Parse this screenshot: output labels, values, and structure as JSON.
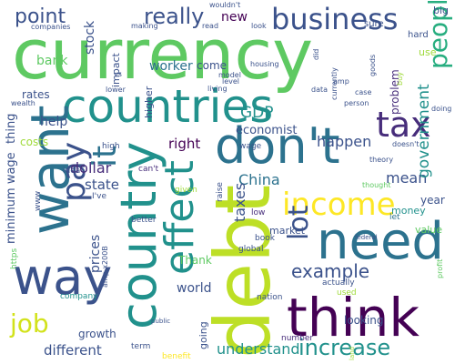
{
  "words": [
    {
      "text": "currency",
      "color": "#5ec962"
    },
    {
      "text": "debt",
      "color": "#bddf26"
    },
    {
      "text": "countries",
      "color": "#21918c"
    },
    {
      "text": "think",
      "color": "#440154"
    },
    {
      "text": "don't",
      "color": "#2c728e"
    },
    {
      "text": "need",
      "color": "#2c728e"
    },
    {
      "text": "way",
      "color": "#3b528b"
    },
    {
      "text": "want",
      "color": "#2c728e"
    },
    {
      "text": "country",
      "color": "#21918c"
    },
    {
      "text": "effect",
      "color": "#21918c"
    },
    {
      "text": "business",
      "color": "#3b528b"
    },
    {
      "text": "tax",
      "color": "#472d7b"
    },
    {
      "text": "income",
      "color": "#fde725"
    },
    {
      "text": "pay",
      "color": "#3b528b"
    },
    {
      "text": "it",
      "color": "#2c728e"
    },
    {
      "text": "job",
      "color": "#d2e21b"
    },
    {
      "text": "lot",
      "color": "#3b528b"
    },
    {
      "text": "example",
      "color": "#3b528b"
    },
    {
      "text": "increase",
      "color": "#21918c"
    },
    {
      "text": "point",
      "color": "#3b528b"
    },
    {
      "text": "really",
      "color": "#3b528b"
    },
    {
      "text": "people",
      "color": "#28ae80"
    },
    {
      "text": "use",
      "color": "#9fda3a"
    },
    {
      "text": "mean",
      "color": "#3b528b"
    },
    {
      "text": "government",
      "color": "#21918c"
    },
    {
      "text": "happen",
      "color": "#3b528b"
    },
    {
      "text": "China",
      "color": "#2c728e"
    },
    {
      "text": "taxes",
      "color": "#3b528b"
    },
    {
      "text": "state",
      "color": "#3b528b"
    },
    {
      "text": "dollar",
      "color": "#472d7b"
    },
    {
      "text": "right",
      "color": "#440154"
    },
    {
      "text": "economist",
      "color": "#3b528b"
    },
    {
      "text": "GDP",
      "color": "#21918c"
    },
    {
      "text": "minimum wage",
      "color": "#3b528b"
    },
    {
      "text": "thing",
      "color": "#3b528b"
    },
    {
      "text": "prices",
      "color": "#3b528b"
    },
    {
      "text": "world",
      "color": "#3b528b"
    },
    {
      "text": "understand",
      "color": "#21918c"
    },
    {
      "text": "different",
      "color": "#3b528b"
    },
    {
      "text": "growth",
      "color": "#3b528b"
    },
    {
      "text": "looking",
      "color": "#3b528b"
    },
    {
      "text": "new",
      "color": "#440154"
    },
    {
      "text": "stock",
      "color": "#3b528b"
    },
    {
      "text": "bank",
      "color": "#5ec962"
    },
    {
      "text": "worker",
      "color": "#2c728e"
    },
    {
      "text": "come",
      "color": "#3b528b"
    },
    {
      "text": "help",
      "color": "#3b528b"
    },
    {
      "text": "rates",
      "color": "#3b528b"
    },
    {
      "text": "costs",
      "color": "#9fda3a"
    },
    {
      "text": "Thank",
      "color": "#5ec962"
    },
    {
      "text": "year",
      "color": "#3b528b"
    },
    {
      "text": "problem",
      "color": "#472d7b"
    },
    {
      "text": "higher",
      "color": "#3b528b"
    },
    {
      "text": "impact",
      "color": "#3b528b"
    },
    {
      "text": "going",
      "color": "#3b528b"
    },
    {
      "text": "money",
      "color": "#21918c"
    },
    {
      "text": "market",
      "color": "#3b528b"
    },
    {
      "text": "value",
      "color": "#5ec962"
    },
    {
      "text": "big",
      "color": "#3b528b"
    },
    {
      "text": "hard",
      "color": "#3b528b"
    },
    {
      "text": "sure",
      "color": "#3b528b"
    },
    {
      "text": "let",
      "color": "#2c728e"
    },
    {
      "text": "low",
      "color": "#472d7b"
    },
    {
      "text": "book",
      "color": "#3b528b"
    },
    {
      "text": "global",
      "color": "#3b528b"
    },
    {
      "text": "nation",
      "color": "#3b528b"
    },
    {
      "text": "actually",
      "color": "#3b528b"
    },
    {
      "text": "used",
      "color": "#9fda3a"
    },
    {
      "text": "number",
      "color": "#472d7b"
    },
    {
      "text": "benefit",
      "color": "#fde725"
    },
    {
      "text": "term",
      "color": "#3b528b"
    },
    {
      "text": "company",
      "color": "#21918c"
    },
    {
      "text": "better",
      "color": "#3b528b"
    },
    {
      "text": "I've",
      "color": "#3b528b"
    },
    {
      "text": "idea",
      "color": "#3b528b"
    },
    {
      "text": "can't",
      "color": "#472d7b"
    },
    {
      "text": "given",
      "color": "#9fda3a"
    },
    {
      "text": "raise",
      "color": "#3b528b"
    },
    {
      "text": "high",
      "color": "#3b528b"
    },
    {
      "text": "wage",
      "color": "#3b528b"
    },
    {
      "text": "https",
      "color": "#5ec962"
    },
    {
      "text": "www",
      "color": "#3b528b"
    },
    {
      "text": "amp x200B",
      "color": "#3b528b"
    },
    {
      "text": "profit",
      "color": "#5ec962"
    },
    {
      "text": "theory",
      "color": "#3b528b"
    },
    {
      "text": "doesn't",
      "color": "#3b528b"
    },
    {
      "text": "thought",
      "color": "#5ec962"
    },
    {
      "text": "person",
      "color": "#3b528b"
    },
    {
      "text": "case",
      "color": "#3b528b"
    },
    {
      "text": "doing",
      "color": "#3b528b"
    },
    {
      "text": "buy",
      "color": "#9fda3a"
    },
    {
      "text": "goods",
      "color": "#3b528b"
    },
    {
      "text": "currently",
      "color": "#3b528b"
    },
    {
      "text": "amp",
      "color": "#3b528b"
    },
    {
      "text": "did",
      "color": "#3b528b"
    },
    {
      "text": "data",
      "color": "#3b528b"
    },
    {
      "text": "housing",
      "color": "#3b528b"
    },
    {
      "text": "model",
      "color": "#3b528b"
    },
    {
      "text": "level",
      "color": "#3b528b"
    },
    {
      "text": "living",
      "color": "#3b528b"
    },
    {
      "text": "lower",
      "color": "#3b528b"
    },
    {
      "text": "vs",
      "color": "#3b528b"
    },
    {
      "text": "making",
      "color": "#3b528b"
    },
    {
      "text": "companies",
      "color": "#3b528b"
    },
    {
      "text": "wouldn't",
      "color": "#3b528b"
    },
    {
      "text": "read",
      "color": "#3b528b"
    },
    {
      "text": "look",
      "color": "#3b528b"
    },
    {
      "text": "wealth",
      "color": "#3b528b"
    },
    {
      "text": "land",
      "color": "#9fda3a"
    },
    {
      "text": "public",
      "color": "#3b528b"
    },
    {
      "text": "federal",
      "color": "#3b528b"
    }
  ]
}
